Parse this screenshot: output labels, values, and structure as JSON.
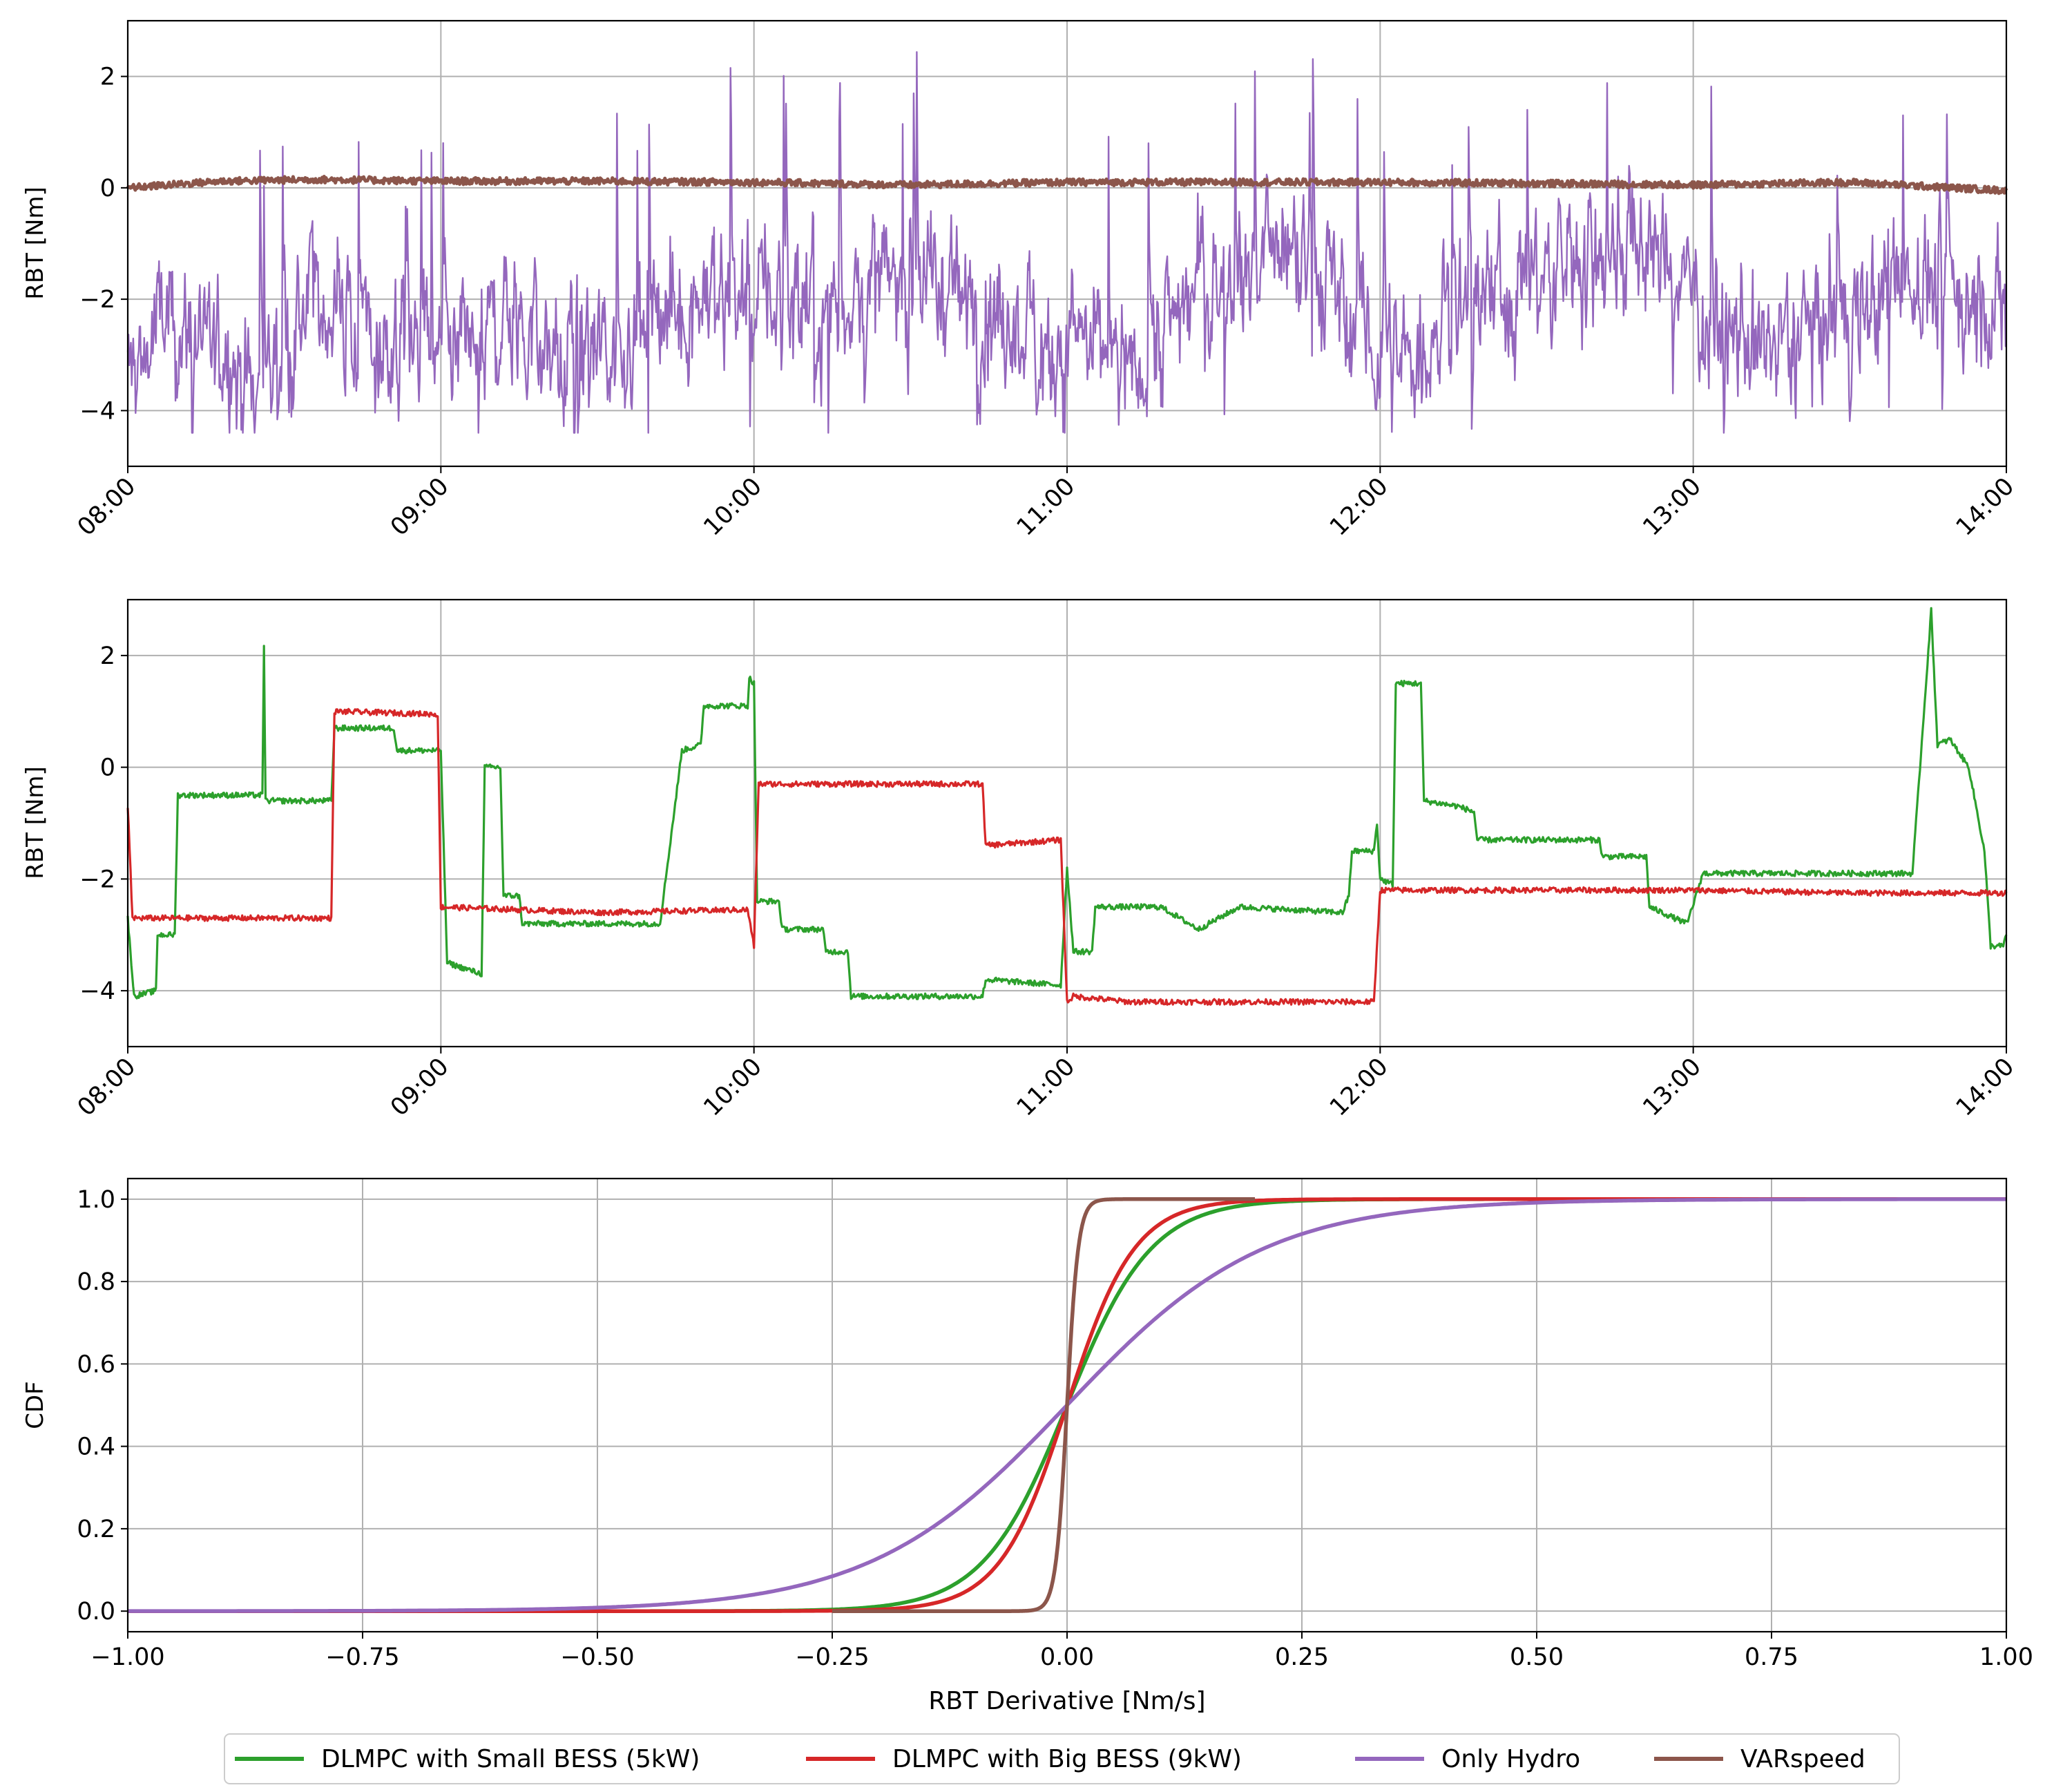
{
  "colors": {
    "small_bess": "#2ca02c",
    "big_bess": "#d62728",
    "only_hydro": "#9467bd",
    "varspeed": "#8c564b",
    "grid": "#b0b0b0"
  },
  "legend": [
    {
      "label": "DLMPC with Small BESS (5kW)",
      "color": "#2ca02c"
    },
    {
      "label": "DLMPC with Big BESS (9kW)",
      "color": "#d62728"
    },
    {
      "label": "Only Hydro",
      "color": "#9467bd"
    },
    {
      "label": "VARspeed",
      "color": "#8c564b"
    }
  ],
  "chart_data": [
    {
      "type": "line",
      "ylabel": "RBT [Nm]",
      "xlim": [
        8,
        14
      ],
      "ylim": [
        -5,
        3
      ],
      "x_ticks": [
        8,
        9,
        10,
        11,
        12,
        13,
        14
      ],
      "x_tick_labels": [
        "08:00",
        "09:00",
        "10:00",
        "11:00",
        "12:00",
        "13:00",
        "14:00"
      ],
      "y_ticks": [
        2,
        0,
        -2,
        -4
      ],
      "y_tick_labels": [
        "2",
        "0",
        "−2",
        "−4"
      ],
      "grid": true,
      "series": [
        {
          "name": "Only Hydro",
          "color": "#9467bd",
          "style": "high-frequency noisy signal",
          "segments": [
            [
              8.0,
              -3.5
            ],
            [
              8.1,
              -2.5
            ],
            [
              8.3,
              -2.8
            ],
            [
              8.4,
              -3.7
            ],
            [
              8.6,
              -2.0
            ],
            [
              8.75,
              -2.8
            ],
            [
              8.9,
              -3.0
            ],
            [
              9.05,
              -3.4
            ],
            [
              9.2,
              -2.2
            ],
            [
              9.4,
              -3.2
            ],
            [
              9.6,
              -2.8
            ],
            [
              9.8,
              -2.0
            ],
            [
              10.0,
              -1.8
            ],
            [
              10.2,
              -2.3
            ],
            [
              10.4,
              -1.8
            ],
            [
              10.6,
              -1.7
            ],
            [
              10.8,
              -2.5
            ],
            [
              11.0,
              -2.8
            ],
            [
              11.2,
              -3.2
            ],
            [
              11.4,
              -1.8
            ],
            [
              11.6,
              -1.4
            ],
            [
              11.8,
              -1.5
            ],
            [
              11.9,
              -2.5
            ],
            [
              12.0,
              -3.0
            ],
            [
              12.1,
              -3.3
            ],
            [
              12.2,
              -2.2
            ],
            [
              12.4,
              -1.8
            ],
            [
              12.6,
              -1.4
            ],
            [
              12.8,
              -1.0
            ],
            [
              13.0,
              -1.8
            ],
            [
              13.1,
              -2.9
            ],
            [
              13.3,
              -2.8
            ],
            [
              13.5,
              -2.2
            ],
            [
              13.7,
              -1.6
            ],
            [
              13.9,
              -2.0
            ],
            [
              14.0,
              -2.4
            ]
          ]
        },
        {
          "name": "VARspeed",
          "color": "#8c564b",
          "style": "flat line near zero",
          "points": [
            [
              8.0,
              0.0
            ],
            [
              8.3,
              0.12
            ],
            [
              8.6,
              0.15
            ],
            [
              9.0,
              0.12
            ],
            [
              9.5,
              0.12
            ],
            [
              10.0,
              0.1
            ],
            [
              10.5,
              0.05
            ],
            [
              11.0,
              0.1
            ],
            [
              11.5,
              0.1
            ],
            [
              12.0,
              0.1
            ],
            [
              12.5,
              0.08
            ],
            [
              13.0,
              0.05
            ],
            [
              13.5,
              0.1
            ],
            [
              14.0,
              -0.05
            ]
          ]
        }
      ]
    },
    {
      "type": "line",
      "ylabel": "RBT [Nm]",
      "xlim": [
        8,
        14
      ],
      "ylim": [
        -5,
        3
      ],
      "x_ticks": [
        8,
        9,
        10,
        11,
        12,
        13,
        14
      ],
      "x_tick_labels": [
        "08:00",
        "09:00",
        "10:00",
        "11:00",
        "12:00",
        "13:00",
        "14:00"
      ],
      "y_ticks": [
        2,
        0,
        -2,
        -4
      ],
      "y_tick_labels": [
        "2",
        "0",
        "−2",
        "−4"
      ],
      "grid": true,
      "series": [
        {
          "name": "DLMPC with Small BESS (5kW)",
          "color": "#2ca02c",
          "points": [
            [
              8.0,
              -2.7
            ],
            [
              8.02,
              -4.1
            ],
            [
              8.09,
              -4.0
            ],
            [
              8.095,
              -3.0
            ],
            [
              8.15,
              -3.0
            ],
            [
              8.16,
              -0.5
            ],
            [
              8.43,
              -0.5
            ],
            [
              8.435,
              2.2
            ],
            [
              8.44,
              -0.6
            ],
            [
              8.65,
              -0.6
            ],
            [
              8.66,
              0.7
            ],
            [
              8.85,
              0.7
            ],
            [
              8.86,
              0.3
            ],
            [
              8.99,
              0.3
            ],
            [
              9.0,
              0.3
            ],
            [
              9.02,
              -3.5
            ],
            [
              9.13,
              -3.7
            ],
            [
              9.14,
              0.0
            ],
            [
              9.19,
              0.0
            ],
            [
              9.2,
              -2.3
            ],
            [
              9.25,
              -2.3
            ],
            [
              9.26,
              -2.8
            ],
            [
              9.7,
              -2.8
            ],
            [
              9.77,
              0.3
            ],
            [
              9.83,
              0.4
            ],
            [
              9.84,
              1.1
            ],
            [
              9.98,
              1.1
            ],
            [
              9.985,
              1.6
            ],
            [
              10.0,
              1.5
            ],
            [
              10.01,
              -2.4
            ],
            [
              10.08,
              -2.4
            ],
            [
              10.09,
              -2.9
            ],
            [
              10.22,
              -2.9
            ],
            [
              10.23,
              -3.3
            ],
            [
              10.3,
              -3.3
            ],
            [
              10.31,
              -4.1
            ],
            [
              10.73,
              -4.1
            ],
            [
              10.74,
              -3.8
            ],
            [
              10.98,
              -3.9
            ],
            [
              11.0,
              -1.8
            ],
            [
              11.02,
              -3.3
            ],
            [
              11.08,
              -3.3
            ],
            [
              11.09,
              -2.5
            ],
            [
              11.3,
              -2.5
            ],
            [
              11.42,
              -2.9
            ],
            [
              11.55,
              -2.5
            ],
            [
              11.88,
              -2.6
            ],
            [
              11.9,
              -2.3
            ],
            [
              11.91,
              -1.5
            ],
            [
              11.98,
              -1.5
            ],
            [
              11.99,
              -1.0
            ],
            [
              12.0,
              -2.0
            ],
            [
              12.04,
              -2.1
            ],
            [
              12.05,
              1.5
            ],
            [
              12.13,
              1.5
            ],
            [
              12.14,
              -0.6
            ],
            [
              12.25,
              -0.7
            ],
            [
              12.3,
              -0.8
            ],
            [
              12.31,
              -1.3
            ],
            [
              12.7,
              -1.3
            ],
            [
              12.71,
              -1.6
            ],
            [
              12.85,
              -1.6
            ],
            [
              12.86,
              -2.5
            ],
            [
              12.98,
              -2.8
            ],
            [
              13.02,
              -2.1
            ],
            [
              13.03,
              -1.9
            ],
            [
              13.7,
              -1.9
            ],
            [
              13.76,
              2.8
            ],
            [
              13.78,
              0.4
            ],
            [
              13.82,
              0.5
            ],
            [
              13.88,
              0.0
            ],
            [
              13.93,
              -1.5
            ],
            [
              13.95,
              -3.2
            ],
            [
              13.99,
              -3.2
            ],
            [
              14.0,
              -3.0
            ]
          ]
        },
        {
          "name": "DLMPC with Big BESS (9kW)",
          "color": "#d62728",
          "points": [
            [
              8.0,
              -0.7
            ],
            [
              8.015,
              -2.7
            ],
            [
              8.65,
              -2.7
            ],
            [
              8.66,
              1.0
            ],
            [
              8.99,
              0.95
            ],
            [
              9.0,
              -2.5
            ],
            [
              9.5,
              -2.6
            ],
            [
              9.98,
              -2.55
            ],
            [
              10.0,
              -3.2
            ],
            [
              10.015,
              -0.3
            ],
            [
              10.5,
              -0.3
            ],
            [
              10.73,
              -0.3
            ],
            [
              10.74,
              -1.4
            ],
            [
              10.98,
              -1.3
            ],
            [
              11.0,
              -4.2
            ],
            [
              11.02,
              -4.1
            ],
            [
              11.2,
              -4.2
            ],
            [
              11.98,
              -4.2
            ],
            [
              12.0,
              -2.2
            ],
            [
              12.5,
              -2.2
            ],
            [
              13.0,
              -2.2
            ],
            [
              13.5,
              -2.25
            ],
            [
              14.0,
              -2.25
            ]
          ]
        }
      ]
    },
    {
      "type": "line",
      "ylabel": "CDF",
      "xlabel": "RBT Derivative [Nm/s]",
      "xlim": [
        -1.0,
        1.0
      ],
      "ylim": [
        -0.05,
        1.05
      ],
      "x_ticks": [
        -1.0,
        -0.75,
        -0.5,
        -0.25,
        0.0,
        0.25,
        0.5,
        0.75,
        1.0
      ],
      "x_tick_labels": [
        "−1.00",
        "−0.75",
        "−0.50",
        "−0.25",
        "0.00",
        "0.25",
        "0.50",
        "0.75",
        "1.00"
      ],
      "y_ticks": [
        0.0,
        0.2,
        0.4,
        0.6,
        0.8,
        1.0
      ],
      "y_tick_labels": [
        "0.0",
        "0.2",
        "0.4",
        "0.6",
        "0.8",
        "1.0"
      ],
      "grid": true,
      "series": [
        {
          "name": "DLMPC with Small BESS (5kW)",
          "color": "#2ca02c",
          "distribution": "logistic",
          "center": 0.0,
          "scale": 0.045,
          "x_range": [
            -1.0,
            1.0
          ]
        },
        {
          "name": "DLMPC with Big BESS (9kW)",
          "color": "#d62728",
          "distribution": "logistic",
          "center": 0.0,
          "scale": 0.036,
          "x_range": [
            -1.0,
            1.0
          ]
        },
        {
          "name": "Only Hydro",
          "color": "#9467bd",
          "distribution": "logistic",
          "center": 0.0,
          "scale": 0.105,
          "x_range": [
            -1.0,
            1.0
          ]
        },
        {
          "name": "VARspeed",
          "color": "#8c564b",
          "distribution": "logistic",
          "center": 0.0,
          "scale": 0.006,
          "x_range": [
            -0.25,
            0.2
          ]
        }
      ]
    }
  ]
}
